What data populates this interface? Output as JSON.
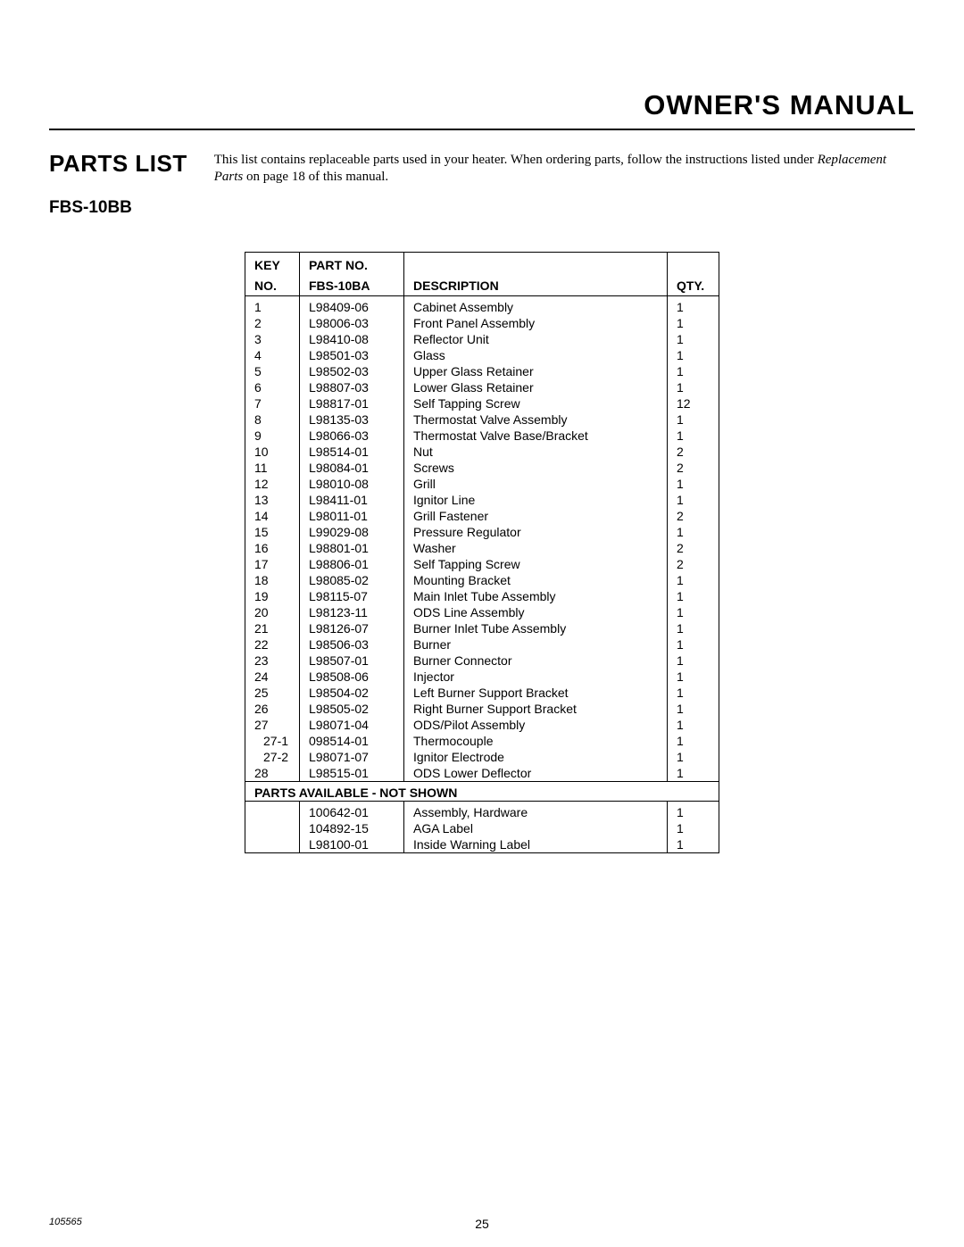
{
  "header_title": "OWNER'S MANUAL",
  "section_title": "PARTS LIST",
  "intro_text_1": "This list contains replaceable parts used in your heater. When ordering parts, follow the instructions listed under ",
  "intro_text_italic": "Replacement Parts",
  "intro_text_2": " on page 18 of this manual.",
  "model": "FBS-10BB",
  "table": {
    "headers": {
      "key_line1": "KEY",
      "key_line2": "NO.",
      "part_line1": "PART NO.",
      "part_line2": "FBS-10BA",
      "desc": "DESCRIPTION",
      "qty": "QTY."
    },
    "rows": [
      {
        "key": "1",
        "part": "L98409-06",
        "desc": "Cabinet Assembly",
        "qty": "1"
      },
      {
        "key": "2",
        "part": "L98006-03",
        "desc": "Front Panel Assembly",
        "qty": "1"
      },
      {
        "key": "3",
        "part": "L98410-08",
        "desc": "Reflector Unit",
        "qty": "1"
      },
      {
        "key": "4",
        "part": "L98501-03",
        "desc": "Glass",
        "qty": "1"
      },
      {
        "key": "5",
        "part": "L98502-03",
        "desc": "Upper Glass Retainer",
        "qty": "1"
      },
      {
        "key": "6",
        "part": "L98807-03",
        "desc": "Lower Glass Retainer",
        "qty": "1"
      },
      {
        "key": "7",
        "part": "L98817-01",
        "desc": "Self Tapping Screw",
        "qty": "12"
      },
      {
        "key": "8",
        "part": "L98135-03",
        "desc": "Thermostat Valve Assembly",
        "qty": "1"
      },
      {
        "key": "9",
        "part": "L98066-03",
        "desc": "Thermostat Valve Base/Bracket",
        "qty": "1"
      },
      {
        "key": "10",
        "part": "L98514-01",
        "desc": "Nut",
        "qty": "2"
      },
      {
        "key": "11",
        "part": "L98084-01",
        "desc": "Screws",
        "qty": "2"
      },
      {
        "key": "12",
        "part": "L98010-08",
        "desc": "Grill",
        "qty": "1"
      },
      {
        "key": "13",
        "part": "L98411-01",
        "desc": "Ignitor Line",
        "qty": "1"
      },
      {
        "key": "14",
        "part": "L98011-01",
        "desc": "Grill Fastener",
        "qty": "2"
      },
      {
        "key": "15",
        "part": "L99029-08",
        "desc": "Pressure Regulator",
        "qty": "1"
      },
      {
        "key": "16",
        "part": "L98801-01",
        "desc": "Washer",
        "qty": "2"
      },
      {
        "key": "17",
        "part": "L98806-01",
        "desc": "Self Tapping Screw",
        "qty": "2"
      },
      {
        "key": "18",
        "part": "L98085-02",
        "desc": "Mounting Bracket",
        "qty": "1"
      },
      {
        "key": "19",
        "part": "L98115-07",
        "desc": "Main Inlet Tube Assembly",
        "qty": "1"
      },
      {
        "key": "20",
        "part": "L98123-11",
        "desc": "ODS Line Assembly",
        "qty": "1"
      },
      {
        "key": "21",
        "part": "L98126-07",
        "desc": "Burner Inlet Tube Assembly",
        "qty": "1"
      },
      {
        "key": "22",
        "part": "L98506-03",
        "desc": "Burner",
        "qty": "1"
      },
      {
        "key": "23",
        "part": "L98507-01",
        "desc": "Burner Connector",
        "qty": "1"
      },
      {
        "key": "24",
        "part": "L98508-06",
        "desc": "Injector",
        "qty": "1"
      },
      {
        "key": "25",
        "part": "L98504-02",
        "desc": "Left Burner Support Bracket",
        "qty": "1"
      },
      {
        "key": "26",
        "part": "L98505-02",
        "desc": "Right Burner Support Bracket",
        "qty": "1"
      },
      {
        "key": "27",
        "part": "L98071-04",
        "desc": "ODS/Pilot Assembly",
        "qty": "1"
      },
      {
        "key": "27-1",
        "part": "098514-01",
        "desc": "Thermocouple",
        "qty": "1",
        "indent": true
      },
      {
        "key": "27-2",
        "part": "L98071-07",
        "desc": "Ignitor Electrode",
        "qty": "1",
        "indent": true
      },
      {
        "key": "28",
        "part": "L98515-01",
        "desc": "ODS Lower Deflector",
        "qty": "1"
      }
    ],
    "divider_label": "PARTS AVAILABLE - NOT SHOWN",
    "rows2": [
      {
        "key": "",
        "part": "100642-01",
        "desc": "Assembly, Hardware",
        "qty": "1"
      },
      {
        "key": "",
        "part": "104892-15",
        "desc": "AGA Label",
        "qty": "1"
      },
      {
        "key": "",
        "part": "L98100-01",
        "desc": "Inside Warning Label",
        "qty": "1"
      }
    ]
  },
  "footer_doc": "105565",
  "footer_page": "25",
  "colors": {
    "text": "#000000",
    "background": "#ffffff",
    "border": "#000000"
  }
}
